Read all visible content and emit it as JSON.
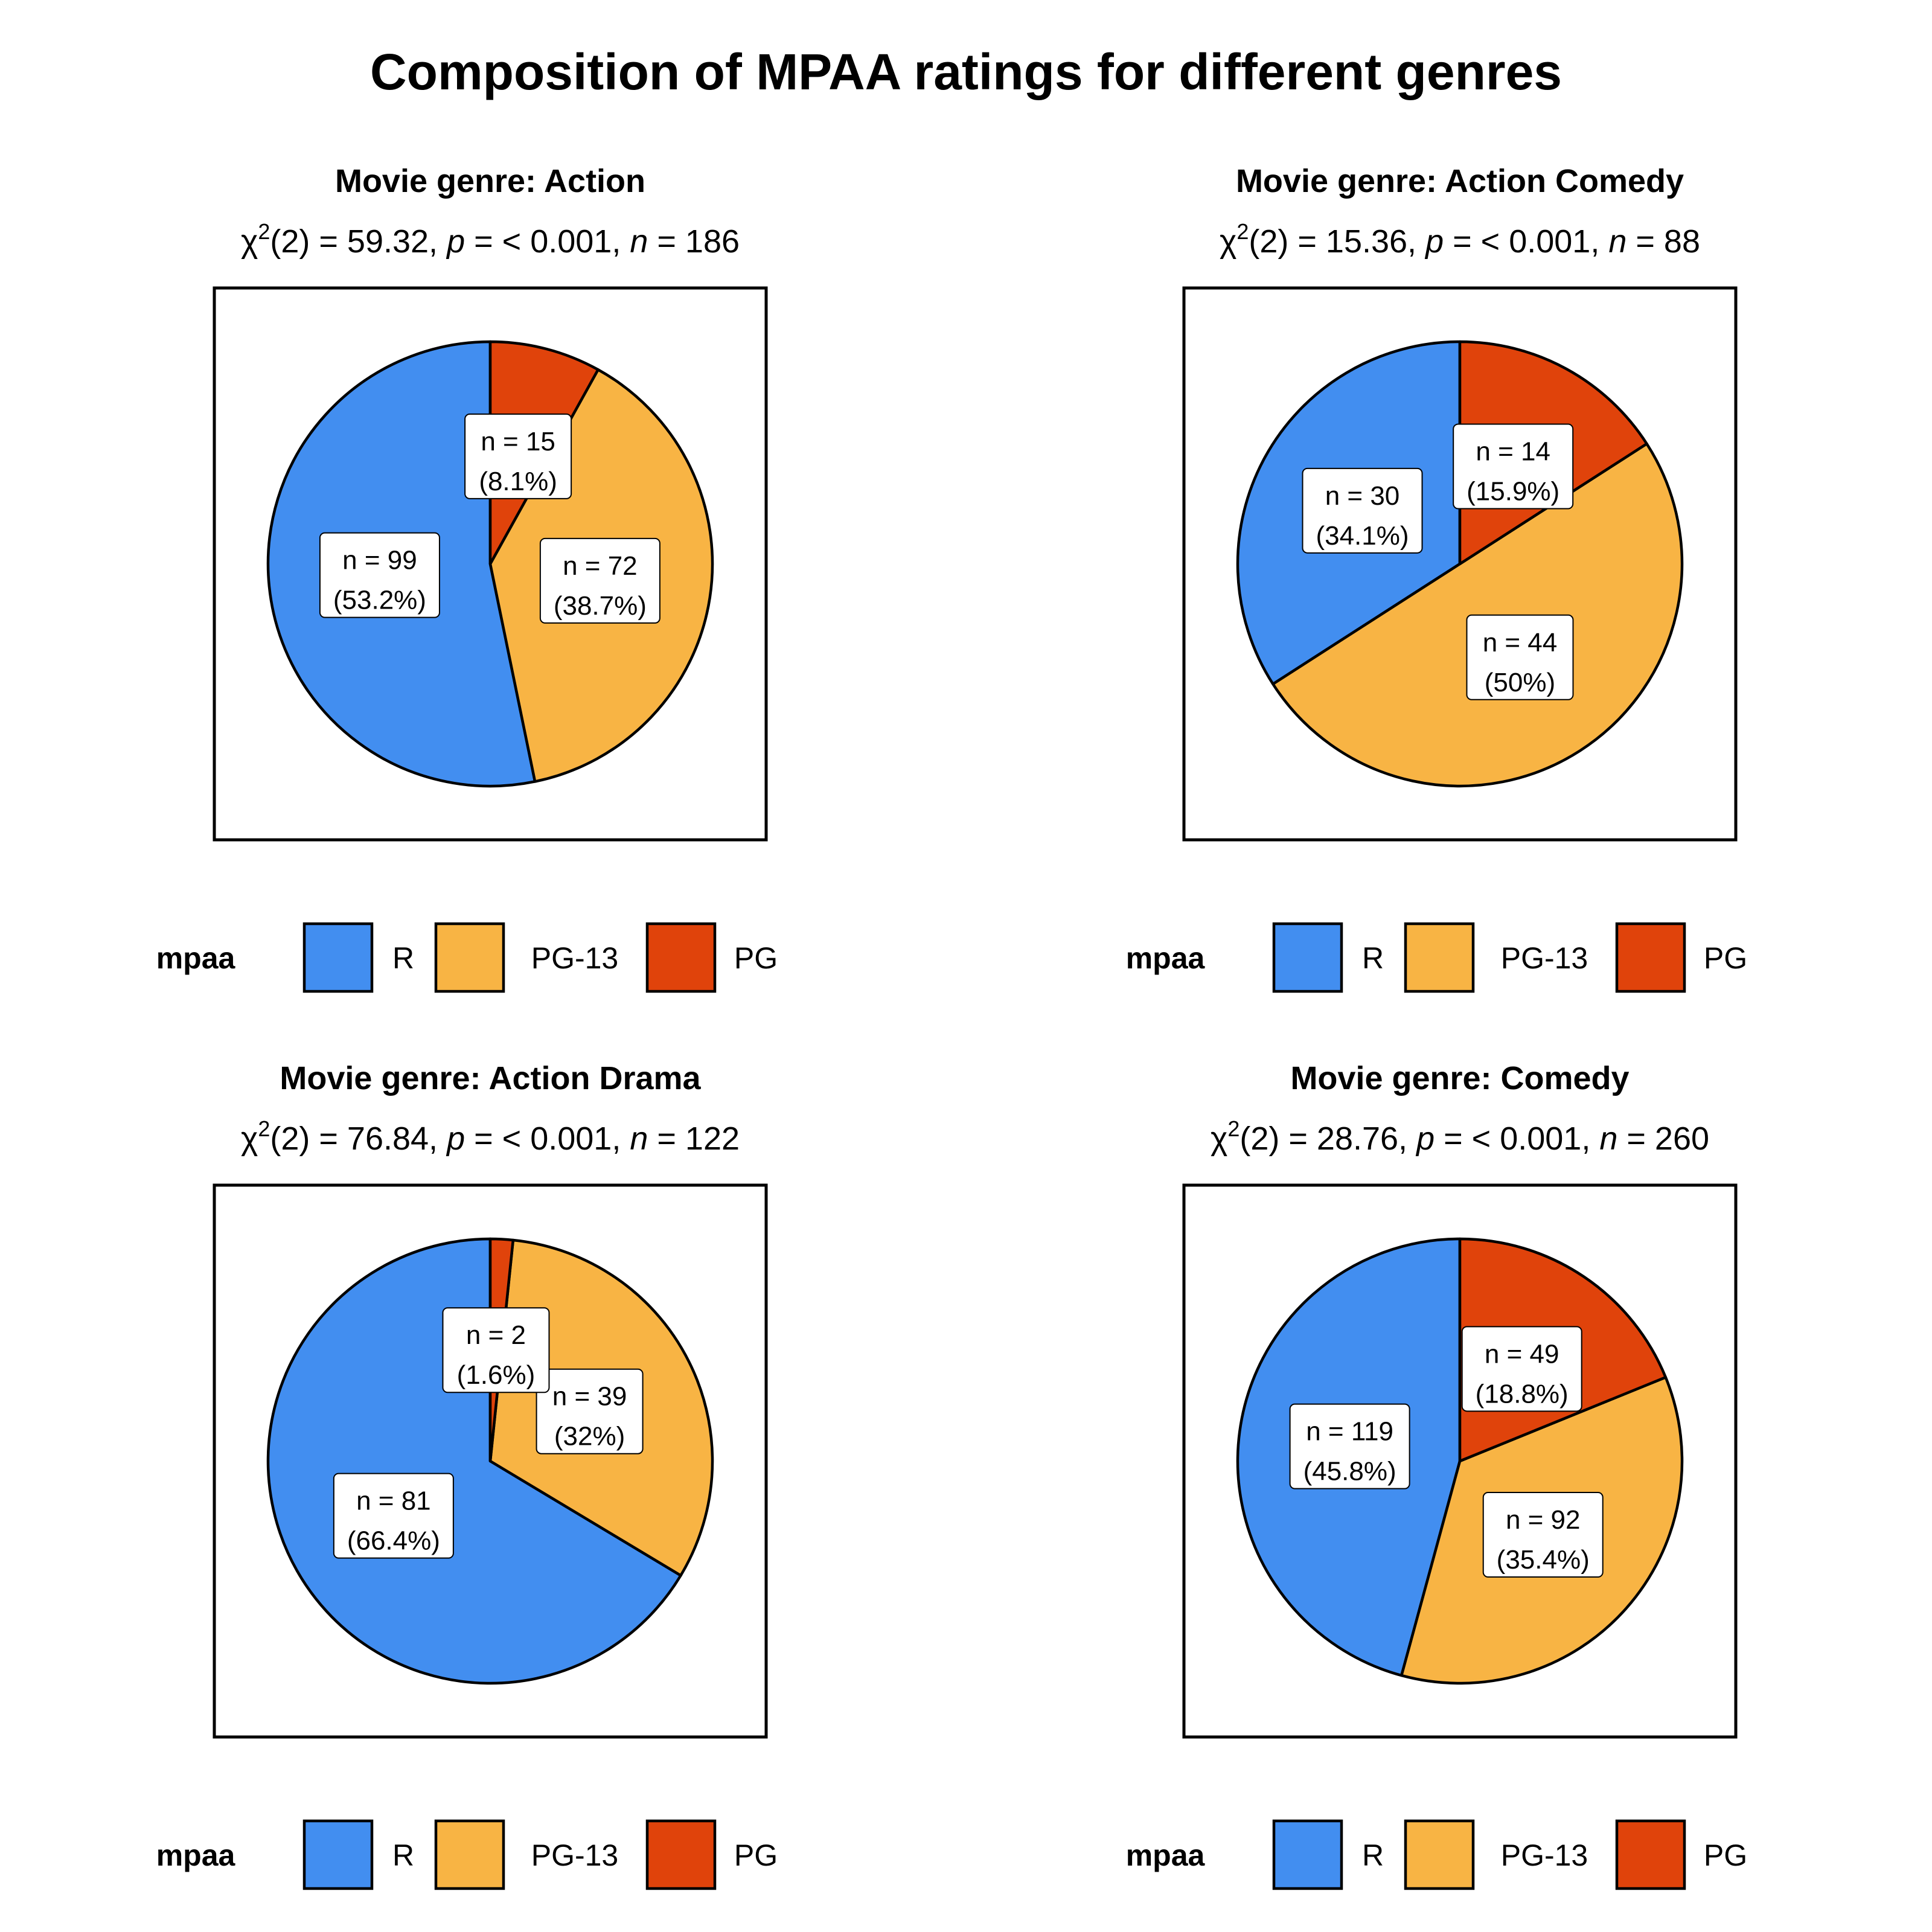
{
  "chart_data": {
    "title": "Composition of MPAA ratings for different genres",
    "type": "pie",
    "legend_title": "mpaa",
    "categories": [
      "R",
      "PG-13",
      "PG"
    ],
    "colors": {
      "R": "#428EF0",
      "PG-13": "#F8B444",
      "PG": "#E0430B"
    },
    "panels": [
      {
        "title": "Movie genre: Action",
        "stats": {
          "df": "2",
          "chi2": "59.32",
          "p": "< 0.001",
          "n": "186"
        },
        "slices": [
          {
            "category": "R",
            "n": 99,
            "n_label": "n = 99",
            "pct_label": "(53.2%)"
          },
          {
            "category": "PG-13",
            "n": 72,
            "n_label": "n = 72",
            "pct_label": "(38.7%)"
          },
          {
            "category": "PG",
            "n": 15,
            "n_label": "n = 15",
            "pct_label": "(8.1%)"
          }
        ]
      },
      {
        "title": "Movie genre: Action Comedy",
        "stats": {
          "df": "2",
          "chi2": "15.36",
          "p": "< 0.001",
          "n": "88"
        },
        "slices": [
          {
            "category": "R",
            "n": 30,
            "n_label": "n = 30",
            "pct_label": "(34.1%)"
          },
          {
            "category": "PG-13",
            "n": 44,
            "n_label": "n = 44",
            "pct_label": "(50%)"
          },
          {
            "category": "PG",
            "n": 14,
            "n_label": "n = 14",
            "pct_label": "(15.9%)"
          }
        ]
      },
      {
        "title": "Movie genre: Action Drama",
        "stats": {
          "df": "2",
          "chi2": "76.84",
          "p": "< 0.001",
          "n": "122"
        },
        "slices": [
          {
            "category": "R",
            "n": 81,
            "n_label": "n = 81",
            "pct_label": "(66.4%)"
          },
          {
            "category": "PG-13",
            "n": 39,
            "n_label": "n = 39",
            "pct_label": "(32%)"
          },
          {
            "category": "PG",
            "n": 2,
            "n_label": "n = 2",
            "pct_label": "(1.6%)"
          }
        ]
      },
      {
        "title": "Movie genre: Comedy",
        "stats": {
          "df": "2",
          "chi2": "28.76",
          "p": "< 0.001",
          "n": "260"
        },
        "slices": [
          {
            "category": "R",
            "n": 119,
            "n_label": "n = 119",
            "pct_label": "(45.8%)"
          },
          {
            "category": "PG-13",
            "n": 92,
            "n_label": "n = 92",
            "pct_label": "(35.4%)"
          },
          {
            "category": "PG",
            "n": 49,
            "n_label": "n = 49",
            "pct_label": "(18.8%)"
          }
        ]
      }
    ]
  }
}
